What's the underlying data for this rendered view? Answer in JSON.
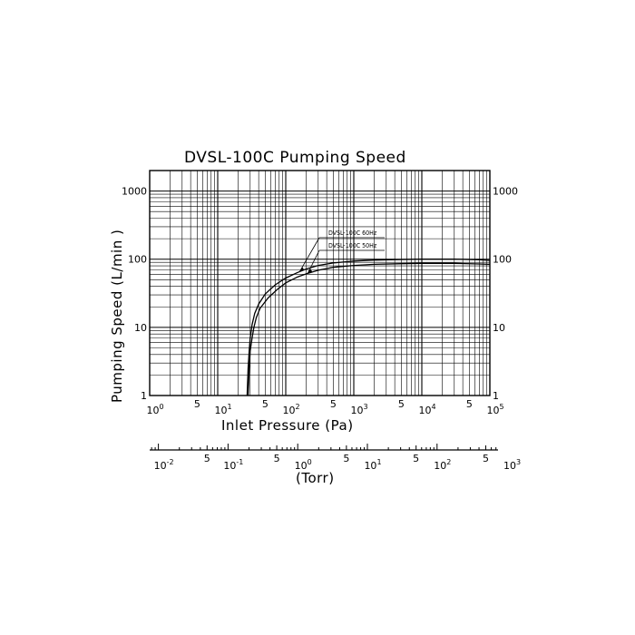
{
  "chart_data": {
    "type": "line",
    "title": "DVSL-100C Pumping Speed",
    "xlabel": "Inlet Pressure (Pa)",
    "ylabel": "Pumping Speed (L/min )",
    "x_scale": "log",
    "y_scale": "log",
    "xlim": [
      1,
      100000
    ],
    "ylim": [
      1,
      2000
    ],
    "grid": true,
    "x_major_ticks": [
      {
        "base": "10",
        "exp": "0"
      },
      {
        "base": "10",
        "exp": "1"
      },
      {
        "base": "10",
        "exp": "2"
      },
      {
        "base": "10",
        "exp": "3"
      },
      {
        "base": "10",
        "exp": "4"
      },
      {
        "base": "10",
        "exp": "5"
      }
    ],
    "x_minor_label": "5",
    "y_ticks": [
      "1",
      "10",
      "100",
      "1000"
    ],
    "secondary_x_axis": {
      "label": "(Torr)",
      "xlim": [
        0.0075,
        750
      ],
      "major_ticks": [
        {
          "base": "10",
          "exp": "-2"
        },
        {
          "base": "10",
          "exp": "-1"
        },
        {
          "base": "10",
          "exp": "0"
        },
        {
          "base": "10",
          "exp": "1"
        },
        {
          "base": "10",
          "exp": "2"
        },
        {
          "base": "10",
          "exp": "3"
        }
      ],
      "minor_label": "5"
    },
    "series": [
      {
        "name": "DVSL-100C 60Hz",
        "x": [
          27,
          27.5,
          28,
          29,
          30,
          32,
          35,
          40,
          50,
          70,
          100,
          150,
          200,
          300,
          500,
          1000,
          2000,
          5000,
          10000,
          30000,
          70000,
          100000
        ],
        "y": [
          1,
          1.5,
          2.5,
          4.5,
          7,
          11,
          16,
          22,
          31,
          42,
          53,
          64,
          72,
          81,
          88,
          94,
          97,
          99,
          100,
          100,
          98,
          96
        ]
      },
      {
        "name": "DVSL-100C 50Hz",
        "x": [
          28,
          28.5,
          29,
          30,
          32,
          34,
          37,
          42,
          55,
          75,
          100,
          150,
          200,
          300,
          500,
          1000,
          2000,
          5000,
          10000,
          30000,
          70000,
          100000
        ],
        "y": [
          1,
          1.5,
          2.5,
          4.5,
          7,
          10,
          14,
          19,
          27,
          36,
          45,
          55,
          61,
          69,
          76,
          81,
          84,
          86,
          87,
          87,
          85,
          84
        ]
      }
    ]
  }
}
